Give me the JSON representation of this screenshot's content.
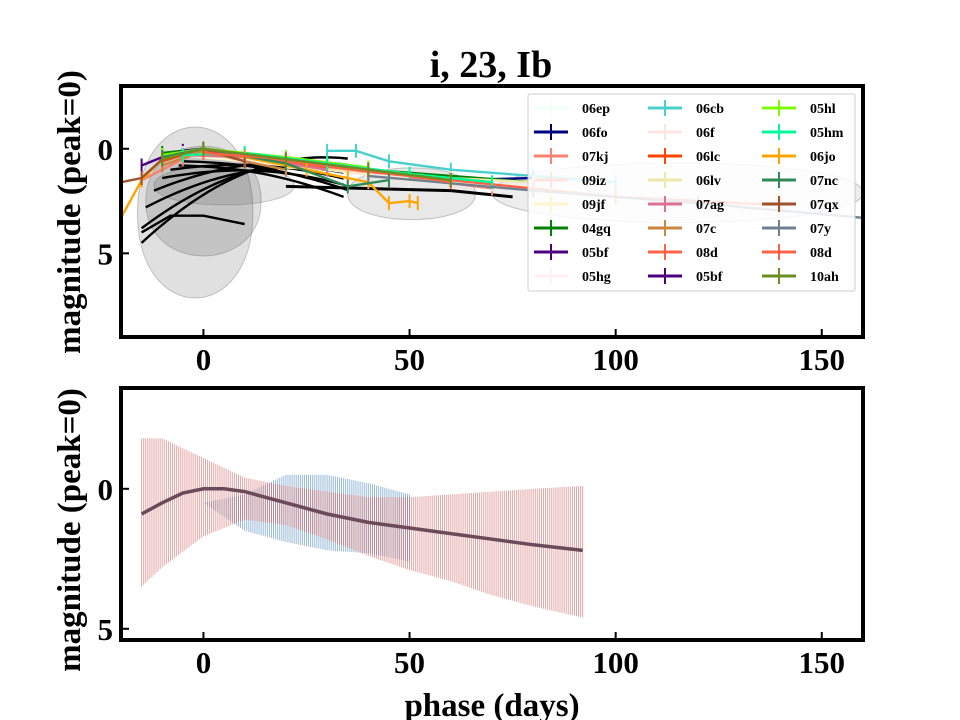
{
  "chart_data": [
    {
      "type": "line",
      "title": "i, 23, Ib",
      "xlabel": "",
      "ylabel": "magnitude (peak=0)",
      "xlim": [
        -20,
        160
      ],
      "ylim": [
        9,
        -3
      ],
      "xticks": [
        0,
        50,
        100,
        150
      ],
      "yticks": [
        0,
        5
      ],
      "legend_position": "upper-right",
      "legend": [
        {
          "name": "06ep",
          "color": "#f0fff8"
        },
        {
          "name": "06fo",
          "color": "#000080"
        },
        {
          "name": "07kj",
          "color": "#fa8072"
        },
        {
          "name": "09iz",
          "color": "#ffe4e1"
        },
        {
          "name": "09jf",
          "color": "#fff5d0"
        },
        {
          "name": "04gq",
          "color": "#008000"
        },
        {
          "name": "05bf",
          "color": "#4b0082"
        },
        {
          "name": "05hg",
          "color": "#fff0f5"
        },
        {
          "name": "06cb",
          "color": "#48d1cc"
        },
        {
          "name": "06f",
          "color": "#ffe4e1"
        },
        {
          "name": "06lc",
          "color": "#ff4500"
        },
        {
          "name": "06lv",
          "color": "#eee8aa"
        },
        {
          "name": "07ag",
          "color": "#db7093"
        },
        {
          "name": "07c",
          "color": "#cd853f"
        },
        {
          "name": "08d",
          "color": "#ff6347"
        },
        {
          "name": "05bf",
          "color": "#4b0082"
        },
        {
          "name": "05hl",
          "color": "#7cfc00"
        },
        {
          "name": "05hm",
          "color": "#00fa9a"
        },
        {
          "name": "06jo",
          "color": "#ffa500"
        },
        {
          "name": "07nc",
          "color": "#2e8b57"
        },
        {
          "name": "07qx",
          "color": "#a0522d"
        },
        {
          "name": "07y",
          "color": "#708090"
        },
        {
          "name": "08d",
          "color": "#ff6347"
        },
        {
          "name": "10ah",
          "color": "#6b8e23"
        }
      ],
      "series": [
        {
          "name": "06ep",
          "x": [
            -5,
            10,
            30,
            50,
            70
          ],
          "y": [
            0.3,
            0.5,
            0.9,
            1.3,
            1.7
          ]
        },
        {
          "name": "06fo",
          "x": [
            -10,
            0,
            20,
            40,
            60,
            80
          ],
          "y": [
            0.4,
            0,
            0.6,
            1.1,
            1.5,
            1.4
          ]
        },
        {
          "name": "07kj",
          "x": [
            -15,
            -5,
            0,
            10,
            30,
            50,
            70
          ],
          "y": [
            1.5,
            0.5,
            0.1,
            0.3,
            0.9,
            1.4,
            1.9
          ]
        },
        {
          "name": "09iz",
          "x": [
            -5,
            10,
            30,
            50
          ],
          "y": [
            0.2,
            0.3,
            0.8,
            1.2
          ]
        },
        {
          "name": "09jf",
          "x": [
            -5,
            10,
            30,
            50,
            70,
            90
          ],
          "y": [
            0.3,
            0.6,
            1.0,
            1.5,
            1.7,
            2.0
          ]
        },
        {
          "name": "04gq",
          "x": [
            -10,
            0,
            20,
            40,
            60,
            80
          ],
          "y": [
            0.2,
            0,
            0.5,
            1.0,
            1.3,
            1.6
          ]
        },
        {
          "name": "05bf",
          "x": [
            -15,
            -10,
            -5,
            0
          ],
          "y": [
            0.8,
            0.4,
            0.1,
            0
          ]
        },
        {
          "name": "05hg",
          "x": [
            0,
            20,
            40
          ],
          "y": [
            0.1,
            0.6,
            1.1
          ]
        },
        {
          "name": "06cb",
          "x": [
            30,
            37,
            45,
            60,
            80,
            100
          ],
          "y": [
            0.1,
            0.1,
            0.6,
            1.0,
            1.3,
            1.6
          ]
        },
        {
          "name": "06f",
          "x": [
            -5,
            10,
            30,
            50
          ],
          "y": [
            0.2,
            0.5,
            1.0,
            1.4
          ]
        },
        {
          "name": "06lc",
          "x": [
            -10,
            0,
            10,
            30
          ],
          "y": [
            0.6,
            0,
            0.3,
            0.9
          ]
        },
        {
          "name": "06lv",
          "x": [
            20,
            40,
            60,
            80
          ],
          "y": [
            0.9,
            1.1,
            1.4,
            1.6
          ]
        },
        {
          "name": "07ag",
          "x": [
            -5,
            10,
            30
          ],
          "y": [
            0.3,
            0.4,
            1.0
          ]
        },
        {
          "name": "07c",
          "x": [
            -10,
            0,
            10,
            20
          ],
          "y": [
            0.8,
            0.1,
            0.6,
            1.0
          ]
        },
        {
          "name": "08d",
          "x": [
            0,
            20,
            40,
            60,
            80,
            100,
            140
          ],
          "y": [
            0.1,
            0.6,
            1.1,
            1.5,
            1.9,
            2.3,
            2.7
          ]
        },
        {
          "name": "05bf",
          "x": [
            -10,
            0,
            10
          ],
          "y": [
            0.5,
            0,
            0.4
          ]
        },
        {
          "name": "05hl",
          "x": [
            -10,
            0,
            20,
            40
          ],
          "y": [
            0.3,
            0,
            0.4,
            0.9
          ]
        },
        {
          "name": "05hm",
          "x": [
            -5,
            10,
            30,
            50,
            70
          ],
          "y": [
            0.3,
            0.2,
            0.7,
            1.2,
            1.6
          ]
        },
        {
          "name": "06jo",
          "x": [
            -20,
            -15,
            -10,
            0,
            10,
            25,
            35,
            40,
            45,
            50,
            52
          ],
          "y": [
            3.3,
            1.5,
            0.5,
            0,
            0.4,
            1.0,
            1.4,
            1.6,
            2.6,
            2.5,
            2.6
          ]
        },
        {
          "name": "07nc",
          "x": [
            -10,
            0,
            20,
            35,
            45
          ],
          "y": [
            0.4,
            0,
            0.7,
            1.8,
            1.5
          ]
        },
        {
          "name": "07qx",
          "x": [
            -20,
            -15,
            -10,
            0,
            10
          ],
          "y": [
            1.6,
            1.4,
            0.5,
            0,
            0.6
          ]
        },
        {
          "name": "07y",
          "x": [
            40,
            80,
            120,
            160
          ],
          "y": [
            1.3,
            2.0,
            2.6,
            3.3
          ]
        },
        {
          "name": "08d",
          "x": [
            0,
            20,
            40,
            60
          ],
          "y": [
            0.2,
            0.5,
            1.0,
            1.6
          ]
        },
        {
          "name": "10ah",
          "x": [
            -10,
            0,
            20,
            40,
            60
          ],
          "y": [
            0.5,
            0,
            0.5,
            1.0,
            1.5
          ]
        }
      ]
    },
    {
      "type": "area",
      "title": "",
      "xlabel": "phase (days)",
      "ylabel": "magnitude (peak=0)",
      "xlim": [
        -20,
        160
      ],
      "ylim": [
        5.4,
        -3.6
      ],
      "xticks": [
        0,
        50,
        100,
        150
      ],
      "yticks": [
        0,
        5
      ],
      "series": [
        {
          "name": "",
          "color": "#4682b4",
          "x": [
            -15,
            0,
            10,
            20,
            30,
            40,
            50
          ],
          "y": [
            0.9,
            0.0,
            0.1,
            0.5,
            0.9,
            1.2,
            1.5
          ],
          "lower": [
            0.9,
            0.5,
            0.2,
            -0.5,
            -0.5,
            -0.2,
            0.2
          ],
          "upper": [
            0.9,
            0.5,
            1.5,
            1.9,
            2.2,
            2.3,
            2.6
          ]
        },
        {
          "name": "",
          "color": "#cd5c5c",
          "x": [
            -15,
            -10,
            0,
            10,
            20,
            30,
            40,
            50,
            60,
            70,
            80,
            92
          ],
          "y": [
            0.9,
            0.4,
            0.0,
            0.1,
            0.5,
            0.9,
            1.2,
            1.4,
            1.6,
            1.8,
            2.0,
            2.2
          ],
          "lower": [
            -1.8,
            -1.8,
            -1.1,
            -0.4,
            -0.1,
            0.1,
            0.3,
            0.3,
            0.2,
            0.1,
            0.0,
            -0.1
          ],
          "upper": [
            3.5,
            2.8,
            1.7,
            1.1,
            1.3,
            1.8,
            2.4,
            2.9,
            3.3,
            3.8,
            4.2,
            4.6
          ]
        },
        {
          "name": "",
          "color": "#6b4a5a",
          "x": [
            -15,
            -10,
            -5,
            0,
            5,
            10,
            20,
            30,
            40,
            50,
            60,
            70,
            80,
            92
          ],
          "y": [
            0.9,
            0.5,
            0.15,
            0.0,
            0.0,
            0.1,
            0.5,
            0.9,
            1.2,
            1.4,
            1.6,
            1.8,
            2.0,
            2.2
          ]
        }
      ]
    }
  ]
}
